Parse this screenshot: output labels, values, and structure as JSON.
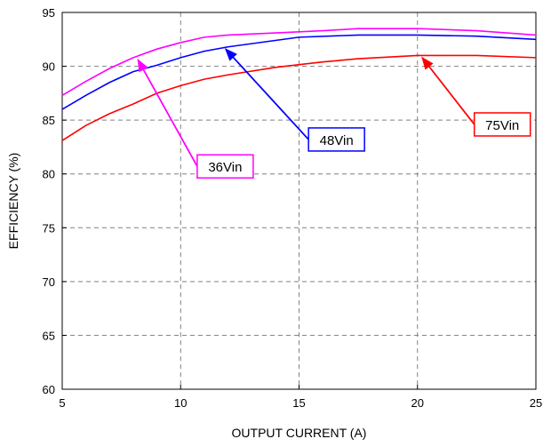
{
  "chart_data": {
    "type": "line",
    "xlabel": "OUTPUT CURRENT (A)",
    "ylabel": "EFFICIENCY (%)",
    "xlim": [
      5,
      25
    ],
    "ylim": [
      60,
      95
    ],
    "xticks": [
      5,
      10,
      15,
      20,
      25
    ],
    "yticks": [
      60,
      65,
      70,
      75,
      80,
      85,
      90,
      95
    ],
    "grid": true,
    "series": [
      {
        "name": "36Vin",
        "color": "#ff00ff",
        "x": [
          5,
          6,
          7,
          8,
          9,
          10,
          11,
          12,
          14,
          16,
          17.5,
          20,
          22.5,
          25
        ],
        "y": [
          87.3,
          88.6,
          89.8,
          90.8,
          91.6,
          92.2,
          92.7,
          92.9,
          93.1,
          93.3,
          93.5,
          93.5,
          93.3,
          92.9
        ]
      },
      {
        "name": "48Vin",
        "color": "#0000ff",
        "x": [
          5,
          6,
          7,
          8,
          9,
          10,
          11,
          12,
          14,
          15,
          17.5,
          20,
          22.5,
          25
        ],
        "y": [
          86.0,
          87.3,
          88.5,
          89.5,
          90.1,
          90.8,
          91.4,
          91.8,
          92.4,
          92.7,
          92.9,
          92.9,
          92.8,
          92.5
        ]
      },
      {
        "name": "75Vin",
        "color": "#ff0000",
        "x": [
          5,
          6,
          7,
          8,
          9,
          10,
          11,
          12,
          14,
          16,
          17.5,
          20,
          22.5,
          25
        ],
        "y": [
          83.1,
          84.5,
          85.6,
          86.5,
          87.5,
          88.2,
          88.8,
          89.2,
          89.9,
          90.4,
          90.7,
          91.0,
          91.0,
          90.8
        ]
      }
    ],
    "annotations": [
      {
        "text": "36Vin",
        "color": "#ff00ff",
        "arrow_to": [
          8.2,
          90.6
        ],
        "arrow_from": [
          10.7,
          80.7
        ]
      },
      {
        "text": "48Vin",
        "color": "#0000ff",
        "arrow_to": [
          11.9,
          91.6
        ],
        "arrow_from": [
          15.4,
          83.2
        ]
      },
      {
        "text": "75Vin",
        "color": "#ff0000",
        "arrow_to": [
          20.2,
          90.8
        ],
        "arrow_from": [
          22.4,
          84.6
        ]
      }
    ]
  }
}
